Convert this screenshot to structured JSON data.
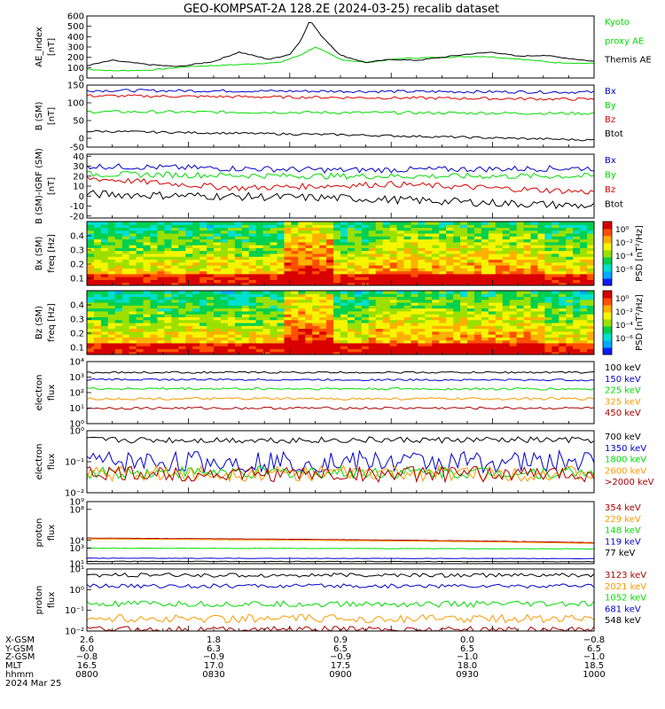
{
  "title": "GEO-KOMPSAT-2A 128.2E (2024-03-25) recalib dataset",
  "chart_data": [
    {
      "panel": "ae_index",
      "type": "line",
      "ylabel": [
        "AE_index",
        "[nT]"
      ],
      "ylim": [
        0,
        600
      ],
      "yticks": [
        0,
        100,
        200,
        300,
        400,
        500,
        600
      ],
      "yscale": "linear",
      "series": [
        {
          "name": "Kyoto proxy AE",
          "label": [
            "Kyoto",
            "proxy AE"
          ],
          "color": "#00dd00",
          "kind": "ae",
          "t": [
            0,
            0.05,
            0.12,
            0.2,
            0.3,
            0.38,
            0.42,
            0.45,
            0.5,
            0.55,
            0.62,
            0.7,
            0.78,
            0.85,
            0.92,
            1
          ],
          "y": [
            85,
            70,
            75,
            110,
            130,
            150,
            220,
            300,
            180,
            150,
            190,
            200,
            210,
            185,
            150,
            140
          ]
        },
        {
          "name": "Themis AE",
          "label": [
            "Themis AE"
          ],
          "color": "#000000",
          "kind": "ae",
          "t": [
            0,
            0.05,
            0.12,
            0.18,
            0.25,
            0.3,
            0.36,
            0.4,
            0.42,
            0.44,
            0.46,
            0.5,
            0.55,
            0.6,
            0.65,
            0.7,
            0.75,
            0.8,
            0.85,
            0.9,
            0.95,
            1
          ],
          "y": [
            120,
            170,
            130,
            110,
            160,
            250,
            180,
            230,
            350,
            560,
            420,
            220,
            150,
            180,
            170,
            200,
            230,
            250,
            210,
            220,
            190,
            160
          ]
        }
      ]
    },
    {
      "panel": "b_sm",
      "type": "line",
      "ylabel": [
        "B (SM)",
        "[nT]"
      ],
      "ylim": [
        -25,
        150
      ],
      "yticks": [
        -50,
        0,
        50,
        100,
        150
      ],
      "yscale": "linear",
      "series": [
        {
          "name": "Bx",
          "label": [
            "Bx"
          ],
          "color": "#0000cc",
          "kind": "noise",
          "t": [
            0,
            1
          ],
          "y": [
            135,
            130
          ],
          "amp": 4
        },
        {
          "name": "By",
          "label": [
            "By"
          ],
          "color": "#00dd00",
          "kind": "noise",
          "t": [
            0,
            1
          ],
          "y": [
            75,
            70
          ],
          "amp": 4
        },
        {
          "name": "Bz",
          "label": [
            "Bz"
          ],
          "color": "#dd0000",
          "kind": "noise",
          "t": [
            0,
            0.5,
            1
          ],
          "y": [
            120,
            115,
            110
          ],
          "amp": 4
        },
        {
          "name": "Btot",
          "label": [
            "Btot"
          ],
          "color": "#000000",
          "kind": "noise",
          "t": [
            0,
            0.5,
            1
          ],
          "y": [
            20,
            10,
            -5
          ],
          "amp": 3
        }
      ]
    },
    {
      "panel": "b_minus_igrf",
      "type": "line",
      "ylabel": [
        "B (SM)-IGRF (SM)",
        "[nT]"
      ],
      "ylim": [
        -22,
        42
      ],
      "yticks": [
        -20,
        -10,
        0,
        10,
        20,
        30,
        40
      ],
      "yscale": "linear",
      "series": [
        {
          "name": "Bx",
          "label": [
            "Bx"
          ],
          "color": "#0000cc",
          "kind": "noise",
          "t": [
            0,
            0.5,
            1
          ],
          "y": [
            30,
            26,
            28
          ],
          "amp": 3
        },
        {
          "name": "By",
          "label": [
            "By"
          ],
          "color": "#00dd00",
          "kind": "noise",
          "t": [
            0,
            0.5,
            1
          ],
          "y": [
            22,
            20,
            20
          ],
          "amp": 3
        },
        {
          "name": "Bz",
          "label": [
            "Bz"
          ],
          "color": "#dd0000",
          "kind": "noise",
          "t": [
            0,
            0.3,
            0.6,
            1
          ],
          "y": [
            18,
            8,
            12,
            4
          ],
          "amp": 3
        },
        {
          "name": "Btot",
          "label": [
            "Btot"
          ],
          "color": "#000000",
          "kind": "noise",
          "t": [
            0,
            0.5,
            1
          ],
          "y": [
            2,
            -2,
            -10
          ],
          "amp": 4
        }
      ]
    },
    {
      "panel": "bx_spectrogram",
      "type": "heatmap",
      "ylabel": [
        "Bx (SM)",
        "freq [Hz]"
      ],
      "ylim": [
        0.05,
        0.5
      ],
      "yticks": [
        0.1,
        0.2,
        0.3,
        0.4
      ],
      "colorbar": {
        "label": "PSD [nT²/Hz]",
        "ticks": [
          "10⁰",
          "10⁻²",
          "10⁻⁴",
          "10⁻⁶"
        ]
      }
    },
    {
      "panel": "bz_spectrogram",
      "type": "heatmap",
      "ylabel": [
        "Bz (SM)",
        "freq [Hz]"
      ],
      "ylim": [
        0.05,
        0.5
      ],
      "yticks": [
        0.1,
        0.2,
        0.3,
        0.4
      ],
      "colorbar": {
        "label": "PSD [nT²/Hz]",
        "ticks": [
          "10⁰",
          "10⁻²",
          "10⁻⁴",
          "10⁻⁶"
        ]
      }
    },
    {
      "panel": "electron_flux_low",
      "type": "line",
      "ylabel": [
        "electron",
        "flux"
      ],
      "yscale": "log",
      "ylim": [
        1,
        10000
      ],
      "yticks": [
        1,
        10,
        100,
        1000,
        10000
      ],
      "ytick_labels": [
        "10⁰",
        "10¹",
        "10²",
        "10³",
        "10⁴"
      ],
      "series": [
        {
          "name": "100 keV",
          "label": [
            "100 keV"
          ],
          "color": "#000000",
          "kind": "noise",
          "t": [
            0,
            1
          ],
          "y": [
            2000,
            2000
          ],
          "amp": 0.06
        },
        {
          "name": "150 keV",
          "label": [
            "150 keV"
          ],
          "color": "#0000cc",
          "kind": "noise",
          "t": [
            0,
            1
          ],
          "y": [
            700,
            650
          ],
          "amp": 0.06
        },
        {
          "name": "225 keV",
          "label": [
            "225 keV"
          ],
          "color": "#00dd00",
          "kind": "noise",
          "t": [
            0,
            1
          ],
          "y": [
            180,
            170
          ],
          "amp": 0.08
        },
        {
          "name": "325 keV",
          "label": [
            "325 keV"
          ],
          "color": "#ff9900",
          "kind": "noise",
          "t": [
            0,
            1
          ],
          "y": [
            40,
            40
          ],
          "amp": 0.08
        },
        {
          "name": "450 keV",
          "label": [
            "450 keV"
          ],
          "color": "#aa0000",
          "kind": "noise",
          "t": [
            0,
            1
          ],
          "y": [
            10,
            10
          ],
          "amp": 0.08
        }
      ]
    },
    {
      "panel": "electron_flux_high",
      "type": "line",
      "ylabel": [
        "electron",
        "flux"
      ],
      "yscale": "log",
      "ylim": [
        0.01,
        1
      ],
      "yticks": [
        0.01,
        0.1,
        1
      ],
      "ytick_labels": [
        "10⁻²",
        "10⁻¹",
        "10⁰"
      ],
      "series": [
        {
          "name": "700 keV",
          "label": [
            "700 keV"
          ],
          "color": "#000000",
          "kind": "noise",
          "t": [
            0,
            1
          ],
          "y": [
            0.5,
            0.5
          ],
          "amp": 0.1
        },
        {
          "name": "1350 keV",
          "label": [
            "1350 keV"
          ],
          "color": "#0000cc",
          "kind": "noise",
          "t": [
            0,
            1
          ],
          "y": [
            0.1,
            0.1
          ],
          "amp": 0.35
        },
        {
          "name": "1800 keV",
          "label": [
            "1800 keV"
          ],
          "color": "#00dd00",
          "kind": "noise",
          "t": [
            0,
            1
          ],
          "y": [
            0.045,
            0.045
          ],
          "amp": 0.2
        },
        {
          "name": "2600 keV",
          "label": [
            "2600 keV"
          ],
          "color": "#ff9900",
          "kind": "noise",
          "t": [
            0,
            1
          ],
          "y": [
            0.042,
            0.042
          ],
          "amp": 0.25
        },
        {
          "name": ">2000 keV",
          "label": [
            ">2000 keV"
          ],
          "color": "#aa0000",
          "kind": "noise",
          "t": [
            0,
            1
          ],
          "y": [
            0.04,
            0.04
          ],
          "amp": 0.25
        }
      ]
    },
    {
      "panel": "proton_flux_low",
      "type": "line",
      "ylabel": [
        "proton",
        "flux"
      ],
      "yscale": "log",
      "ylim": [
        10,
        1000000000
      ],
      "yticks": [
        10,
        1000,
        10000,
        100000000,
        1000000000
      ],
      "ytick_labels": [
        "10¹",
        "10³",
        "10⁴",
        "10⁸",
        "10⁹"
      ],
      "series": [
        {
          "name": "354 keV",
          "label": [
            "354 keV"
          ],
          "color": "#aa0000",
          "kind": "noise",
          "t": [
            0,
            1
          ],
          "y": [
            20000,
            5000
          ],
          "amp": 0.02
        },
        {
          "name": "229 keV",
          "label": [
            "229 keV"
          ],
          "color": "#ff9900",
          "kind": "noise",
          "t": [
            0,
            1
          ],
          "y": [
            15000,
            4000
          ],
          "amp": 0.02
        },
        {
          "name": "148 keV",
          "label": [
            "148 keV"
          ],
          "color": "#00dd00",
          "kind": "noise",
          "t": [
            0,
            1
          ],
          "y": [
            1000,
            800
          ],
          "amp": 0.03
        },
        {
          "name": "119 keV",
          "label": [
            "119 keV"
          ],
          "color": "#0000cc",
          "kind": "noise",
          "t": [
            0,
            1
          ],
          "y": [
            50,
            45
          ],
          "amp": 0.03
        },
        {
          "name": "77 keV",
          "label": [
            "77 keV"
          ],
          "color": "#000000",
          "kind": "noise",
          "t": [
            0,
            1
          ],
          "y": [
            20,
            18
          ],
          "amp": 0.03
        }
      ]
    },
    {
      "panel": "proton_flux_high",
      "type": "line",
      "ylabel": [
        "proton",
        "flux"
      ],
      "yscale": "log",
      "ylim": [
        0.01,
        10
      ],
      "yticks": [
        0.01,
        0.1,
        1,
        10
      ],
      "ytick_labels": [
        "10⁻²",
        "10⁻¹",
        "10⁰",
        "10¹"
      ],
      "series": [
        {
          "name": "3123 keV",
          "label": [
            "3123 keV"
          ],
          "color": "#aa0000",
          "kind": "noise",
          "t": [
            0,
            1
          ],
          "y": [
            0.012,
            0.012
          ],
          "amp": 0.15
        },
        {
          "name": "2021 keV",
          "label": [
            "2021 keV"
          ],
          "color": "#ff9900",
          "kind": "noise",
          "t": [
            0,
            1
          ],
          "y": [
            0.04,
            0.04
          ],
          "amp": 0.2
        },
        {
          "name": "1052 keV",
          "label": [
            "1052 keV"
          ],
          "color": "#00dd00",
          "kind": "noise",
          "t": [
            0,
            1
          ],
          "y": [
            0.2,
            0.2
          ],
          "amp": 0.15
        },
        {
          "name": "681 keV",
          "label": [
            "681 keV"
          ],
          "color": "#0000cc",
          "kind": "noise",
          "t": [
            0,
            1
          ],
          "y": [
            1.5,
            1.5
          ],
          "amp": 0.1
        },
        {
          "name": "548 keV",
          "label": [
            "548 keV"
          ],
          "color": "#000000",
          "kind": "noise",
          "t": [
            0,
            1
          ],
          "y": [
            5,
            5
          ],
          "amp": 0.1
        }
      ]
    }
  ],
  "time_axis": {
    "row_labels": [
      "X-GSM",
      "Y-GSM",
      "Z-GSM",
      "MLT",
      "hhmm",
      "2024 Mar 25"
    ],
    "columns": [
      [
        "2.6",
        "6.0",
        "−0.8",
        "16.5",
        "0800"
      ],
      [
        "1.8",
        "6.3",
        "−0.9",
        "17.0",
        "0830"
      ],
      [
        "0.9",
        "6.5",
        "−0.9",
        "17.5",
        "0900"
      ],
      [
        "0.0",
        "6.5",
        "−1.0",
        "18.0",
        "0930"
      ],
      [
        "−0.8",
        "6.5",
        "−1.0",
        "18.5",
        "1000"
      ]
    ]
  }
}
